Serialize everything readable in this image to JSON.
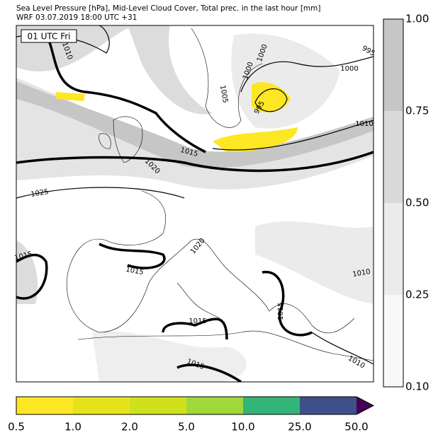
{
  "header": {
    "title": "Sea Level Pressure [hPa], Mid-Level Cloud Cover, Total prec. in the last hour [mm]",
    "subtitle": "WRF 03.07.2019 18:00 UTC +31"
  },
  "time_label": "01 UTC Fri",
  "contour_labels": [
    "1010",
    "1000",
    "995",
    "1000",
    "1005",
    "995",
    "1000",
    "1010",
    "1015",
    "1020",
    "1025",
    "1015",
    "1015",
    "1020",
    "1015",
    "1015",
    "1015",
    "1010",
    "1010"
  ],
  "cloud_colorbar": {
    "labels": [
      "1.00",
      "0.75",
      "0.50",
      "0.25",
      "0.10"
    ],
    "colors": [
      "#c6c6c6",
      "#dadada",
      "#ebebeb",
      "#f8f8f8"
    ]
  },
  "precip_colorbar": {
    "labels": [
      "0.5",
      "1.0",
      "2.0",
      "5.0",
      "10.0",
      "25.0",
      "50.0"
    ],
    "colors": [
      "#fde725",
      "#e6e31c",
      "#cfe11c",
      "#9fd83a",
      "#33b57a",
      "#3d508a"
    ],
    "extend_color": "#440154"
  }
}
